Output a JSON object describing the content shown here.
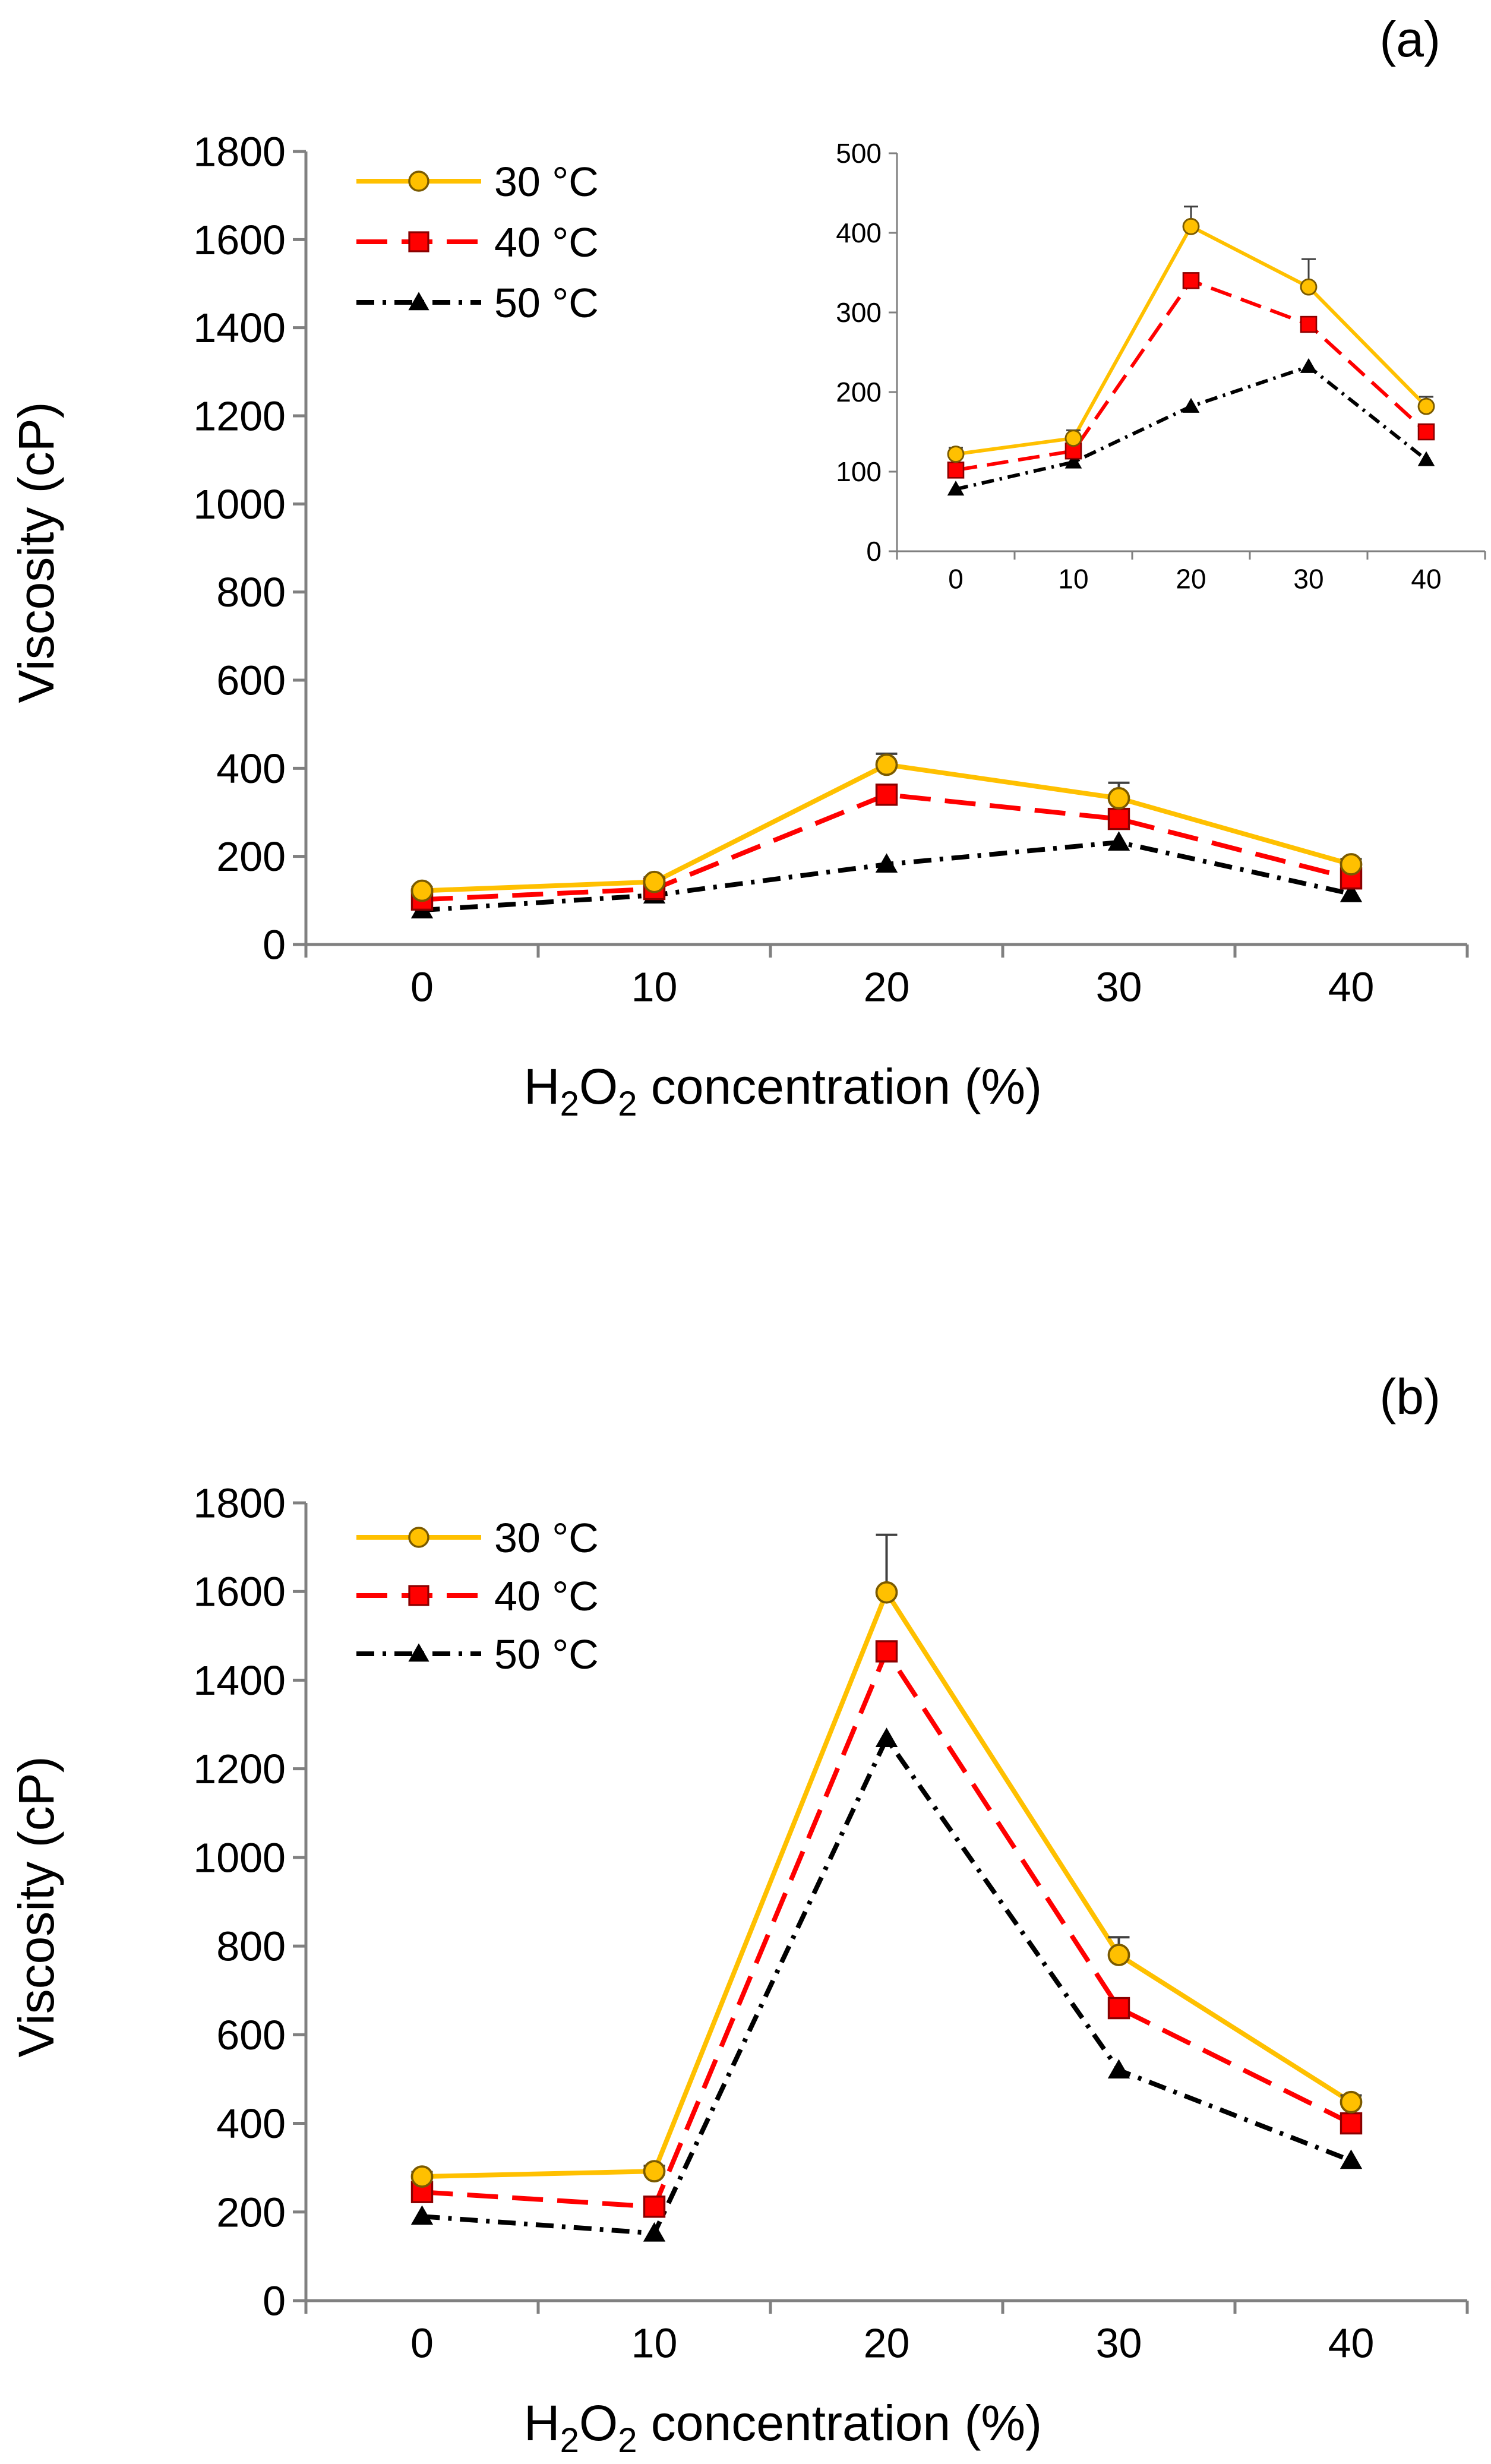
{
  "colors": {
    "s30": "#FFC000",
    "s40": "#FF0000",
    "s50": "#000000",
    "axis": "#808080"
  },
  "chart_data": [
    {
      "id": "a",
      "type": "line",
      "panel_label": "(a)",
      "xlabel": {
        "prefix": "H",
        "sub1": "2",
        "mid": "O",
        "sub2": "2",
        "rest": " concentration (%)"
      },
      "ylabel": "Viscosity (cP)",
      "x": [
        0,
        10,
        20,
        30,
        40
      ],
      "x_ticks": [
        "0",
        "10",
        "20",
        "30",
        "40"
      ],
      "ylim": [
        0,
        1800
      ],
      "y_ticks": [
        "0",
        "200",
        "400",
        "600",
        "800",
        "1000",
        "1200",
        "1400",
        "1600",
        "1800"
      ],
      "legend_position": "top-left",
      "series": [
        {
          "name": "30 °C",
          "style": "solid",
          "marker": "circle",
          "color": "#FFC000",
          "values": [
            122,
            142,
            408,
            332,
            182
          ],
          "errors": [
            8,
            10,
            25,
            35,
            12
          ]
        },
        {
          "name": "40 °C",
          "style": "dashed",
          "marker": "square",
          "color": "#FF0000",
          "values": [
            102,
            126,
            340,
            285,
            150
          ],
          "errors": [
            0,
            0,
            0,
            0,
            0
          ]
        },
        {
          "name": "50 °C",
          "style": "dashdot",
          "marker": "triangle",
          "color": "#000000",
          "values": [
            78,
            112,
            182,
            232,
            115
          ],
          "errors": [
            0,
            0,
            0,
            0,
            0
          ]
        }
      ],
      "inset": {
        "position": "top-right",
        "ylim": [
          0,
          500
        ],
        "y_ticks": [
          "0",
          "100",
          "200",
          "300",
          "400",
          "500"
        ],
        "x_ticks": [
          "0",
          "10",
          "20",
          "30",
          "40"
        ]
      }
    },
    {
      "id": "b",
      "type": "line",
      "panel_label": "(b)",
      "xlabel": {
        "prefix": "H",
        "sub1": "2",
        "mid": "O",
        "sub2": "2",
        "rest": " concentration (%)"
      },
      "ylabel": "Viscosity (cP)",
      "x": [
        0,
        10,
        20,
        30,
        40
      ],
      "x_ticks": [
        "0",
        "10",
        "20",
        "30",
        "40"
      ],
      "ylim": [
        0,
        1800
      ],
      "y_ticks": [
        "0",
        "200",
        "400",
        "600",
        "800",
        "1000",
        "1200",
        "1400",
        "1600",
        "1800"
      ],
      "legend_position": "top-left",
      "series": [
        {
          "name": "30 °C",
          "style": "solid",
          "marker": "circle",
          "color": "#FFC000",
          "values": [
            280,
            292,
            1598,
            780,
            448
          ],
          "errors": [
            10,
            12,
            130,
            40,
            15
          ]
        },
        {
          "name": "40 °C",
          "style": "dashed",
          "marker": "square",
          "color": "#FF0000",
          "values": [
            245,
            212,
            1465,
            660,
            400
          ],
          "errors": [
            0,
            0,
            0,
            0,
            0
          ]
        },
        {
          "name": "50 °C",
          "style": "dashdot",
          "marker": "triangle",
          "color": "#000000",
          "values": [
            190,
            152,
            1268,
            520,
            316
          ],
          "errors": [
            0,
            0,
            0,
            0,
            0
          ]
        }
      ]
    }
  ]
}
